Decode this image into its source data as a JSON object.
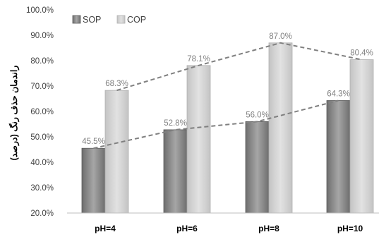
{
  "chart_data": {
    "type": "bar",
    "categories": [
      "pH=4",
      "pH=6",
      "pH=8",
      "pH=10"
    ],
    "series": [
      {
        "name": "SOP",
        "values": [
          45.5,
          52.8,
          56.0,
          64.3
        ],
        "labels": [
          "45.5%",
          "52.8%",
          "56.0%",
          "64.3%"
        ],
        "color": "#8c8c8c"
      },
      {
        "name": "COP",
        "values": [
          68.3,
          78.1,
          87.0,
          80.4
        ],
        "labels": [
          "68.3%",
          "78.1%",
          "87.0%",
          "80.4%"
        ],
        "color": "#d0d0d0"
      }
    ],
    "ylabel": "راندمان حذف رنگ (درصد)",
    "ylim": [
      20,
      100
    ],
    "yticks": [
      "20.0%",
      "30.0%",
      "40.0%",
      "50.0%",
      "60.0%",
      "70.0%",
      "80.0%",
      "90.0%",
      "100.0%"
    ],
    "legend_position": "top-left",
    "trendlines": "dashed",
    "trendline_color": "#808080",
    "grid": false
  }
}
